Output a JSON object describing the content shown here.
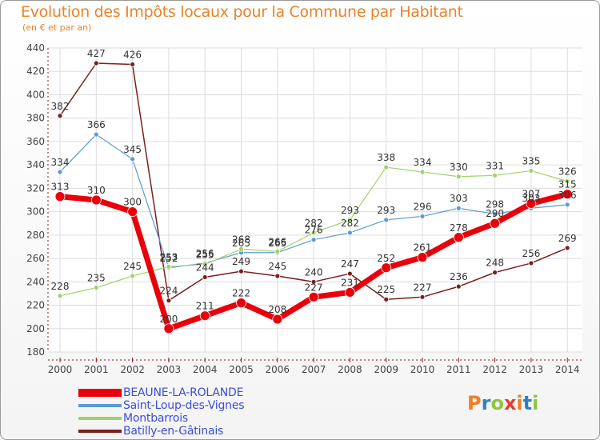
{
  "header": {
    "title": "Evolution des Impôts locaux pour la Commune par Habitant",
    "subtitle": "(en € et par an)"
  },
  "logo": {
    "text": "Proxiti",
    "colors": [
      "#f47c20",
      "#2e7fc2",
      "#8dc63f",
      "#e23c2d",
      "#f47c20",
      "#2e7fc2",
      "#8dc63f"
    ]
  },
  "chart_data": {
    "type": "line",
    "title": "Evolution des Impôts locaux pour la Commune par Habitant",
    "xlabel": "",
    "ylabel": "(en € et par an)",
    "ylim": [
      180,
      440
    ],
    "yticks": [
      180,
      200,
      220,
      240,
      260,
      280,
      300,
      320,
      340,
      360,
      380,
      400,
      420,
      440
    ],
    "grid": true,
    "legend_position": "bottom-left",
    "x": [
      "2000",
      "2001",
      "2002",
      "2003",
      "2004",
      "2005",
      "2006",
      "2007",
      "2008",
      "2009",
      "2010",
      "2011",
      "2012",
      "2013",
      "2014"
    ],
    "series": [
      {
        "name": "Batilly-en-Gâtinais",
        "color": "#7a1f1f",
        "values": [
          382,
          427,
          426,
          224,
          244,
          249,
          245,
          240,
          247,
          225,
          227,
          236,
          248,
          256,
          269
        ]
      },
      {
        "name": "Saint-Loup-des-Vignes",
        "color": "#5b9bd5",
        "values": [
          334,
          366,
          345,
          252,
          256,
          265,
          265,
          276,
          282,
          293,
          296,
          303,
          298,
          303,
          306
        ]
      },
      {
        "name": "Montbarrois",
        "color": "#9ed36a",
        "values": [
          228,
          235,
          245,
          253,
          255,
          268,
          266,
          282,
          293,
          338,
          334,
          330,
          331,
          335,
          326
        ]
      },
      {
        "name": "BEAUNE-LA-ROLANDE",
        "color": "#e8000b",
        "values": [
          313,
          310,
          300,
          200,
          211,
          222,
          208,
          227,
          231,
          252,
          261,
          278,
          290,
          307,
          315
        ]
      }
    ],
    "data_labels": {
      "Batilly-en-Gâtinais": [
        "382",
        "427",
        "426",
        "224",
        "244",
        "249",
        "245",
        "240",
        "247",
        "225",
        "227",
        "236",
        "248",
        "256",
        "269"
      ],
      "Saint-Loup-des-Vignes": [
        "334",
        "366",
        "345",
        "252",
        "256",
        "265",
        "265",
        "276",
        "282",
        "293",
        "296",
        "303",
        "298",
        "303",
        "306"
      ],
      "Montbarrois": [
        "228",
        "235",
        "245",
        "253",
        "255",
        "268",
        "266",
        "282",
        "293",
        "338",
        "334",
        "330",
        "331",
        "335",
        "326"
      ],
      "BEAUNE-LA-ROLANDE": [
        "313",
        "310",
        "300",
        "200",
        "211",
        "222",
        "208",
        "227",
        "231",
        "252",
        "261",
        "278",
        "290",
        "307",
        "315"
      ]
    },
    "legend_order": [
      "BEAUNE-LA-ROLANDE",
      "Saint-Loup-des-Vignes",
      "Montbarrois",
      "Batilly-en-Gâtinais"
    ]
  }
}
